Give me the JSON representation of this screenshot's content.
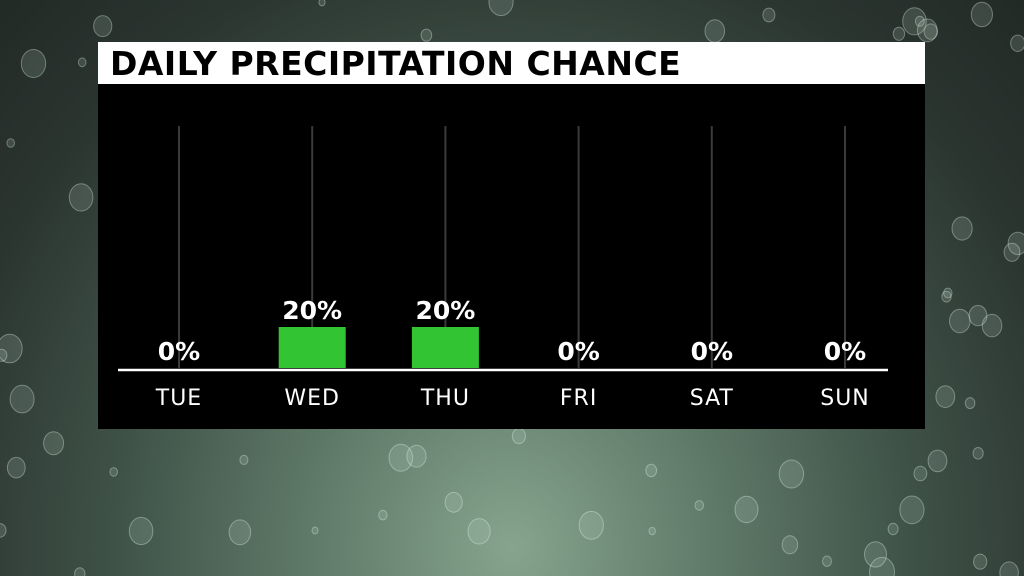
{
  "title": "DAILY PRECIPITATION CHANCE",
  "colors": {
    "bar": "#33c433",
    "panel": "#000000",
    "title_bg": "#ffffff",
    "gridline": "#3a3a3a",
    "axis": "#ffffff"
  },
  "chart_data": {
    "type": "bar",
    "title": "DAILY PRECIPITATION CHANCE",
    "categories": [
      "TUE",
      "WED",
      "THU",
      "FRI",
      "SAT",
      "SUN"
    ],
    "values": [
      0,
      20,
      20,
      0,
      0,
      0
    ],
    "value_labels": [
      "0%",
      "20%",
      "20%",
      "0%",
      "0%",
      "0%"
    ],
    "unit": "%",
    "ylim": [
      0,
      100
    ],
    "grid": true,
    "legend": "none"
  }
}
